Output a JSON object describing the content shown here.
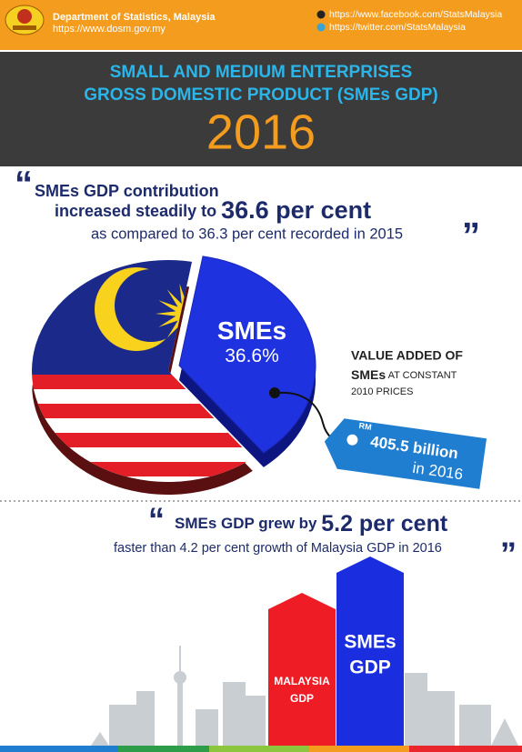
{
  "header": {
    "org": "Department of Statistics, Malaysia",
    "url": "https://www.dosm.gov.my",
    "facebook": "https://www.facebook.com/StatsMalaysia",
    "twitter": "https://twitter.com/StatsMalaysia"
  },
  "title": {
    "line1": "SMALL AND MEDIUM ENTERPRISES",
    "line2": "GROSS DOMESTIC PRODUCT (SMEs GDP)",
    "year": "2016"
  },
  "quote1": {
    "open": "“",
    "line1": "SMEs GDP contribution",
    "line2": "increased steadily to ",
    "emphasis": "36.6 per cent",
    "line3": "as compared to 36.3 per cent recorded in 2015",
    "close": "”"
  },
  "pie": {
    "label": "SMEs",
    "value_label": "36.6%",
    "value": 36.6
  },
  "value_added": {
    "line1": "VALUE ADDED OF",
    "bold": "SMEs",
    "rest": " AT CONSTANT",
    "line3": "2010 PRICES"
  },
  "tag": {
    "currency": "RM",
    "amount": "405.5 billion",
    "year": "in 2016"
  },
  "quote2": {
    "open": "“",
    "line1": "SMEs GDP grew by ",
    "emphasis": "5.2 per cent",
    "line2": "faster than 4.2 per cent growth of Malaysia GDP in 2016",
    "close": "”"
  },
  "bars": [
    {
      "lines": [
        "MALAYSIA",
        "GDP"
      ],
      "value": 4.2,
      "color": "#ee1c24"
    },
    {
      "lines": [
        "SMEs",
        "GDP"
      ],
      "value": 5.2,
      "color": "#1a2ee0"
    }
  ]
}
